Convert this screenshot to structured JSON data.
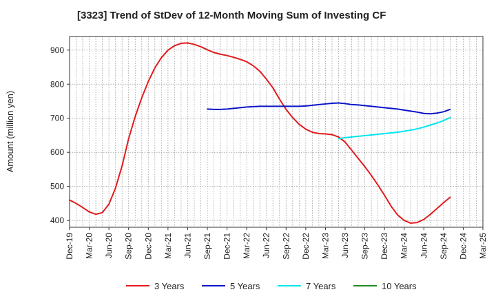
{
  "chart_data": {
    "type": "line",
    "title": "[3323]  Trend of StDev of 12-Month Moving Sum of Investing CF",
    "ylabel": "Amount (million yen)",
    "xlabel": "",
    "ylim": [
      380,
      940
    ],
    "yticks": [
      400,
      500,
      600,
      700,
      800,
      900
    ],
    "xlim": [
      "2019-12",
      "2025-03"
    ],
    "xticks": [
      "Dec-19",
      "Mar-20",
      "Jun-20",
      "Sep-20",
      "Dec-20",
      "Mar-21",
      "Jun-21",
      "Sep-21",
      "Dec-21",
      "Mar-22",
      "Jun-22",
      "Sep-22",
      "Dec-22",
      "Mar-23",
      "Jun-23",
      "Sep-23",
      "Dec-23",
      "Mar-24",
      "Jun-24",
      "Sep-24",
      "Dec-24",
      "Mar-25"
    ],
    "grid": true,
    "legend_position": "bottom",
    "series": [
      {
        "name": "3 Years",
        "color": "#e31a1c",
        "points": [
          [
            "2019-12",
            460
          ],
          [
            "2020-01",
            450
          ],
          [
            "2020-02",
            438
          ],
          [
            "2020-03",
            425
          ],
          [
            "2020-04",
            418
          ],
          [
            "2020-05",
            423
          ],
          [
            "2020-06",
            448
          ],
          [
            "2020-07",
            495
          ],
          [
            "2020-08",
            560
          ],
          [
            "2020-09",
            640
          ],
          [
            "2020-10",
            705
          ],
          [
            "2020-11",
            760
          ],
          [
            "2020-12",
            808
          ],
          [
            "2021-01",
            848
          ],
          [
            "2021-02",
            878
          ],
          [
            "2021-03",
            900
          ],
          [
            "2021-04",
            913
          ],
          [
            "2021-05",
            920
          ],
          [
            "2021-06",
            921
          ],
          [
            "2021-07",
            917
          ],
          [
            "2021-08",
            910
          ],
          [
            "2021-09",
            901
          ],
          [
            "2021-10",
            893
          ],
          [
            "2021-11",
            888
          ],
          [
            "2021-12",
            884
          ],
          [
            "2022-01",
            879
          ],
          [
            "2022-02",
            873
          ],
          [
            "2022-03",
            866
          ],
          [
            "2022-04",
            854
          ],
          [
            "2022-05",
            838
          ],
          [
            "2022-06",
            815
          ],
          [
            "2022-07",
            789
          ],
          [
            "2022-08",
            756
          ],
          [
            "2022-09",
            726
          ],
          [
            "2022-10",
            702
          ],
          [
            "2022-11",
            682
          ],
          [
            "2022-12",
            668
          ],
          [
            "2023-01",
            659
          ],
          [
            "2023-02",
            655
          ],
          [
            "2023-03",
            654
          ],
          [
            "2023-04",
            652
          ],
          [
            "2023-05",
            645
          ],
          [
            "2023-06",
            630
          ],
          [
            "2023-07",
            606
          ],
          [
            "2023-08",
            582
          ],
          [
            "2023-09",
            558
          ],
          [
            "2023-10",
            532
          ],
          [
            "2023-11",
            504
          ],
          [
            "2023-12",
            474
          ],
          [
            "2024-01",
            442
          ],
          [
            "2024-02",
            416
          ],
          [
            "2024-03",
            400
          ],
          [
            "2024-04",
            392
          ],
          [
            "2024-05",
            394
          ],
          [
            "2024-06",
            403
          ],
          [
            "2024-07",
            418
          ],
          [
            "2024-08",
            435
          ],
          [
            "2024-09",
            452
          ],
          [
            "2024-10",
            468
          ]
        ]
      },
      {
        "name": "5 Years",
        "color": "#0a14c8",
        "points": [
          [
            "2021-09",
            727
          ],
          [
            "2021-10",
            726
          ],
          [
            "2021-11",
            726
          ],
          [
            "2021-12",
            727
          ],
          [
            "2022-01",
            729
          ],
          [
            "2022-02",
            731
          ],
          [
            "2022-03",
            733
          ],
          [
            "2022-04",
            734
          ],
          [
            "2022-05",
            735
          ],
          [
            "2022-06",
            735
          ],
          [
            "2022-07",
            735
          ],
          [
            "2022-08",
            735
          ],
          [
            "2022-09",
            735
          ],
          [
            "2022-10",
            735
          ],
          [
            "2022-11",
            735
          ],
          [
            "2022-12",
            736
          ],
          [
            "2023-01",
            738
          ],
          [
            "2023-02",
            740
          ],
          [
            "2023-03",
            742
          ],
          [
            "2023-04",
            744
          ],
          [
            "2023-05",
            745
          ],
          [
            "2023-06",
            743
          ],
          [
            "2023-07",
            740
          ],
          [
            "2023-08",
            739
          ],
          [
            "2023-09",
            737
          ],
          [
            "2023-10",
            735
          ],
          [
            "2023-11",
            733
          ],
          [
            "2023-12",
            731
          ],
          [
            "2024-01",
            729
          ],
          [
            "2024-02",
            727
          ],
          [
            "2024-03",
            724
          ],
          [
            "2024-04",
            721
          ],
          [
            "2024-05",
            718
          ],
          [
            "2024-06",
            714
          ],
          [
            "2024-07",
            713
          ],
          [
            "2024-08",
            715
          ],
          [
            "2024-09",
            719
          ],
          [
            "2024-10",
            726
          ]
        ]
      },
      {
        "name": "7 Years",
        "color": "#00e5ee",
        "points": [
          [
            "2023-05",
            640
          ],
          [
            "2023-06",
            643
          ],
          [
            "2023-07",
            645
          ],
          [
            "2023-08",
            647
          ],
          [
            "2023-09",
            649
          ],
          [
            "2023-10",
            651
          ],
          [
            "2023-11",
            653
          ],
          [
            "2023-12",
            655
          ],
          [
            "2024-01",
            657
          ],
          [
            "2024-02",
            659
          ],
          [
            "2024-03",
            662
          ],
          [
            "2024-04",
            665
          ],
          [
            "2024-05",
            669
          ],
          [
            "2024-06",
            674
          ],
          [
            "2024-07",
            680
          ],
          [
            "2024-08",
            686
          ],
          [
            "2024-09",
            693
          ],
          [
            "2024-10",
            702
          ]
        ]
      },
      {
        "name": "10 Years",
        "color": "#228b22",
        "points": []
      }
    ]
  }
}
